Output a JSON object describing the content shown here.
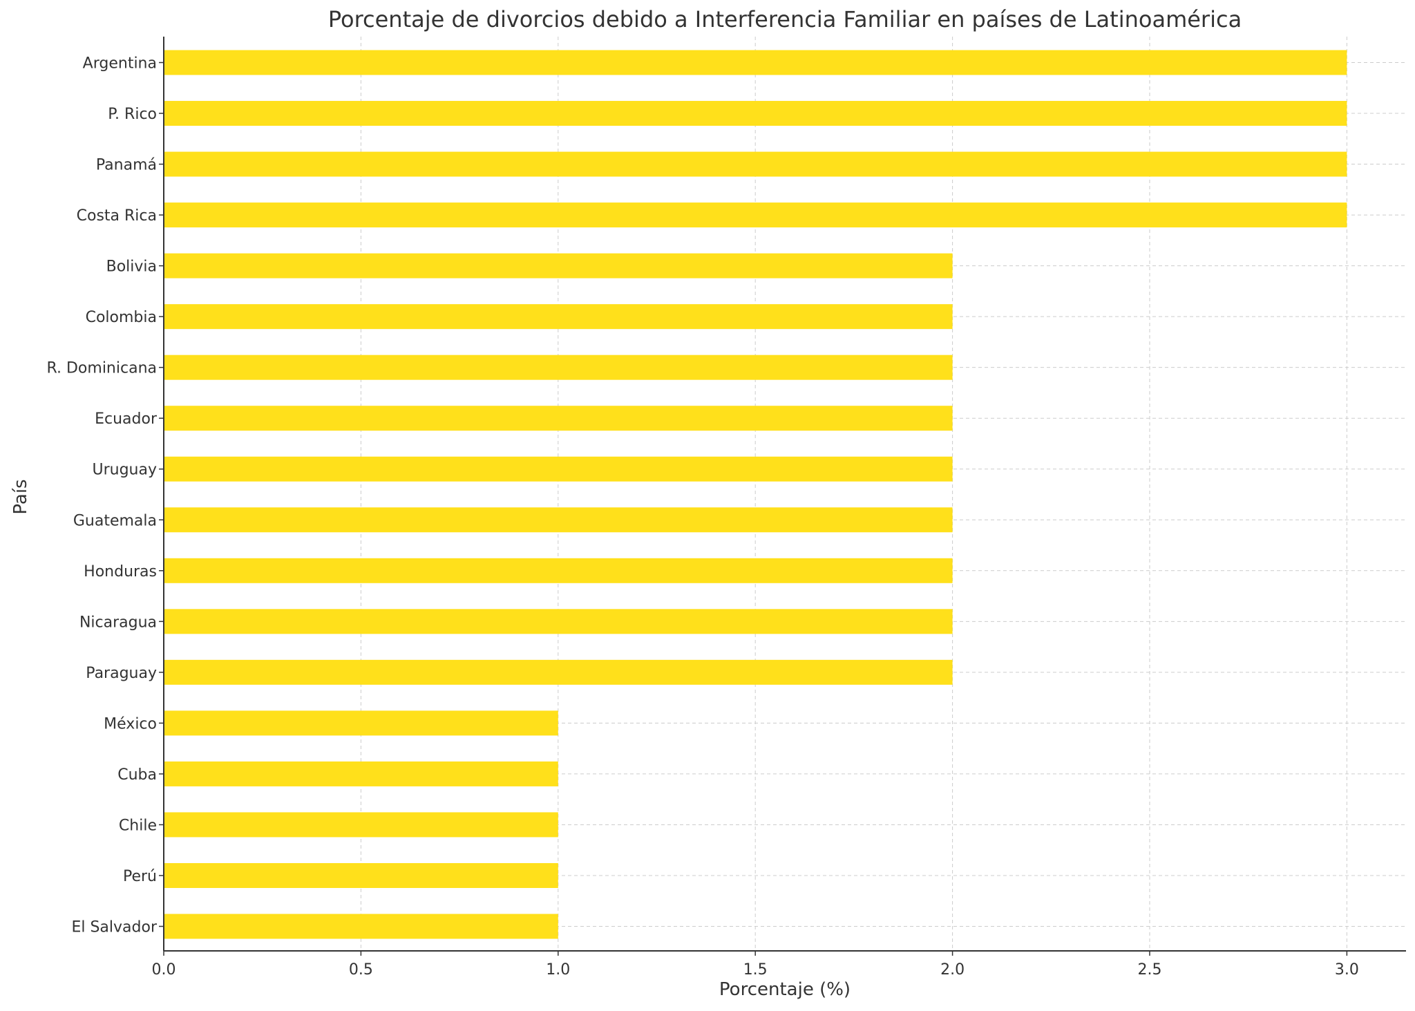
{
  "chart_data": {
    "type": "bar",
    "orientation": "horizontal",
    "title": "Porcentaje de divorcios debido a Interferencia Familiar en países de Latinoamérica",
    "xlabel": "Porcentaje (%)",
    "ylabel": "País",
    "categories": [
      "Argentina",
      "P. Rico",
      "Panamá",
      "Costa Rica",
      "Bolivia",
      "Colombia",
      "R. Dominicana",
      "Ecuador",
      "Uruguay",
      "Guatemala",
      "Honduras",
      "Nicaragua",
      "Paraguay",
      "México",
      "Cuba",
      "Chile",
      "Perú",
      "El Salvador"
    ],
    "values": [
      3,
      3,
      3,
      3,
      2,
      2,
      2,
      2,
      2,
      2,
      2,
      2,
      2,
      1,
      1,
      1,
      1,
      1
    ],
    "xlim": [
      0,
      3.15
    ],
    "xticks": [
      "0.0",
      "0.5",
      "1.0",
      "1.5",
      "2.0",
      "2.5",
      "3.0"
    ],
    "grid": true,
    "bar_color": "#FFE01B",
    "grid_color": "#cccccc",
    "text_color": "#333333"
  }
}
